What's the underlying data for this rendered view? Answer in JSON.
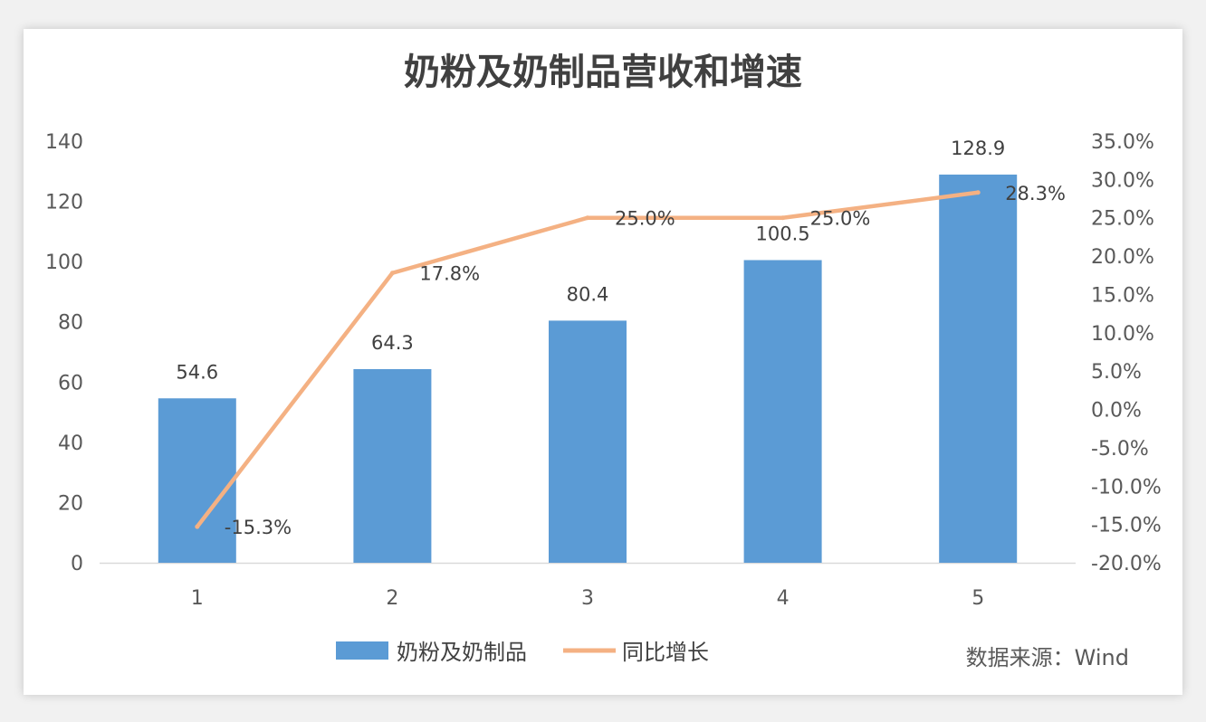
{
  "chart_data": {
    "type": "bar+line",
    "title": "奶粉及奶制品营收和增速",
    "categories": [
      "1",
      "2",
      "3",
      "4",
      "5"
    ],
    "series": [
      {
        "name": "奶粉及奶制品",
        "type": "bar",
        "axis": "left",
        "values": [
          54.6,
          64.3,
          80.4,
          100.5,
          128.9
        ],
        "labels": [
          "54.6",
          "64.3",
          "80.4",
          "100.5",
          "128.9"
        ],
        "color": "#5b9bd5"
      },
      {
        "name": "同比增长",
        "type": "line",
        "axis": "right",
        "values": [
          -15.3,
          17.8,
          25.0,
          25.0,
          28.3
        ],
        "labels": [
          "-15.3%",
          "17.8%",
          "25.0%",
          "25.0%",
          "28.3%"
        ],
        "color": "#f4b183"
      }
    ],
    "y_left": {
      "min": 0,
      "max": 140,
      "ticks": [
        "0",
        "20",
        "40",
        "60",
        "80",
        "100",
        "120",
        "140"
      ]
    },
    "y_right": {
      "min": -20,
      "max": 35,
      "ticks": [
        "-20.0%",
        "-15.0%",
        "-10.0%",
        "-5.0%",
        "0.0%",
        "5.0%",
        "10.0%",
        "15.0%",
        "20.0%",
        "25.0%",
        "30.0%",
        "35.0%"
      ]
    },
    "grid": false,
    "legend": "bottom"
  },
  "source_note": "数据来源：Wind"
}
